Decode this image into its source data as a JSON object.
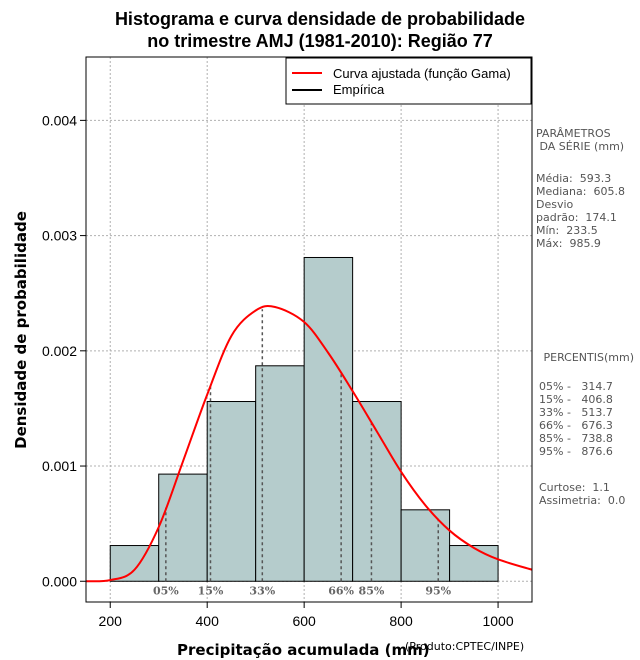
{
  "chart_data": {
    "type": "histogram",
    "title_line1": "Histograma e curva densidade de probabilidade",
    "title_line2": "no trimestre AMJ (1981-2010): Região 77",
    "xlabel": "Precipitação acumulada (mm)",
    "ylabel": "Densidade de probabilidade",
    "xlim": [
      150,
      1070
    ],
    "ylim": [
      -0.00018,
      0.00455
    ],
    "x_ticks": [
      200,
      400,
      600,
      800,
      1000
    ],
    "y_ticks": [
      0.0,
      0.001,
      0.002,
      0.003,
      0.004
    ],
    "y_tick_labels": [
      "0.000",
      "0.001",
      "0.002",
      "0.003",
      "0.004"
    ],
    "bins": [
      {
        "from": 200,
        "to": 300,
        "density": 0.00031
      },
      {
        "from": 300,
        "to": 400,
        "density": 0.00093
      },
      {
        "from": 400,
        "to": 500,
        "density": 0.00156
      },
      {
        "from": 500,
        "to": 600,
        "density": 0.00187
      },
      {
        "from": 600,
        "to": 700,
        "density": 0.00281
      },
      {
        "from": 700,
        "to": 800,
        "density": 0.00156
      },
      {
        "from": 800,
        "to": 900,
        "density": 0.00062
      },
      {
        "from": 900,
        "to": 1000,
        "density": 0.00031
      }
    ],
    "curve": {
      "name": "Curva ajustada (função Gama)",
      "x": [
        150,
        200,
        250,
        300,
        350,
        400,
        450,
        500,
        540,
        600,
        650,
        700,
        750,
        800,
        850,
        900,
        950,
        1000,
        1070
      ],
      "y": [
        0.0,
        1e-05,
        0.0001,
        0.00047,
        0.00104,
        0.00162,
        0.00213,
        0.00235,
        0.00238,
        0.00225,
        0.00198,
        0.00165,
        0.0013,
        0.00095,
        0.00066,
        0.00044,
        0.00029,
        0.00019,
        0.0001
      ]
    },
    "percentiles": [
      {
        "label": "05%",
        "x": 314.7
      },
      {
        "label": "15%",
        "x": 406.8
      },
      {
        "label": "33%",
        "x": 513.7
      },
      {
        "label": "66%",
        "x": 676.3
      },
      {
        "label": "85%",
        "x": 738.8
      },
      {
        "label": "95%",
        "x": 876.6
      }
    ],
    "legend": [
      "Curva ajustada (função Gama)",
      "Empírica"
    ],
    "legend_position": "top-right",
    "colors": {
      "bar_fill": "#b5cccc",
      "curve": "#ff0000",
      "grid": "#b0b0b0",
      "pct_line": "#555555",
      "pct_text": "#666666"
    },
    "grid": true
  },
  "side_panel": {
    "params_heading": "PARÂMETROS\n DA SÉRIE (mm)",
    "params_text": "Média:  593.3\nMediana:  605.8\nDesvio\npadrão:  174.1\nMín:  233.5\nMáx:  985.9",
    "pct_heading": " PERCENTIS(mm)",
    "pct_text": "05% -   314.7\n15% -   406.8\n33% -   513.7\n66% -   676.3\n85% -   738.8\n95% -   876.6",
    "extra_text": "Curtose:  1.1\nAssimetria:  0.0"
  },
  "product_note": "(Produto:CPTEC/INPE)"
}
